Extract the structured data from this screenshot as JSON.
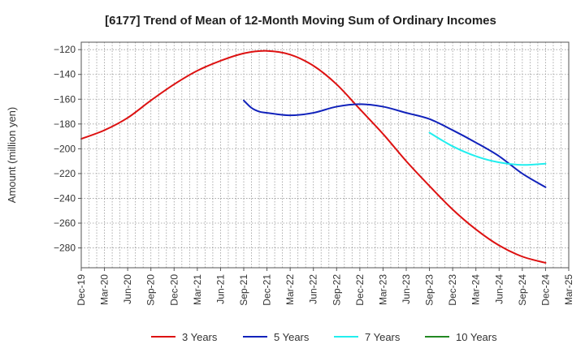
{
  "chart_data": {
    "type": "line",
    "title": "[6177]  Trend of Mean of 12-Month Moving Sum of Ordinary Incomes",
    "xlabel": "",
    "ylabel": "Amount (million yen)",
    "ylim": [
      -296,
      -114
    ],
    "yticks": [
      -120,
      -140,
      -160,
      -180,
      -200,
      -220,
      -240,
      -260,
      -280
    ],
    "x_range": [
      "Dec-19",
      "Mar-25"
    ],
    "x_tick_labels": [
      "Dec-19",
      "Mar-20",
      "Jun-20",
      "Sep-20",
      "Dec-20",
      "Mar-21",
      "Jun-21",
      "Sep-21",
      "Dec-21",
      "Mar-22",
      "Jun-22",
      "Sep-22",
      "Dec-22",
      "Mar-23",
      "Jun-23",
      "Sep-23",
      "Dec-23",
      "Mar-24",
      "Jun-24",
      "Sep-24",
      "Dec-24",
      "Mar-25"
    ],
    "grid": true,
    "legend_position": "bottom",
    "series": [
      {
        "name": "3 Years",
        "color": "#dd1111",
        "points": [
          [
            "Dec-19",
            -192
          ],
          [
            "Mar-20",
            -185
          ],
          [
            "Jun-20",
            -175
          ],
          [
            "Sep-20",
            -161
          ],
          [
            "Dec-20",
            -148
          ],
          [
            "Mar-21",
            -137
          ],
          [
            "Jun-21",
            -129
          ],
          [
            "Sep-21",
            -123
          ],
          [
            "Dec-21",
            -121
          ],
          [
            "Mar-22",
            -124
          ],
          [
            "Jun-22",
            -133
          ],
          [
            "Sep-22",
            -148
          ],
          [
            "Dec-22",
            -168
          ],
          [
            "Mar-23",
            -188
          ],
          [
            "Jun-23",
            -210
          ],
          [
            "Sep-23",
            -230
          ],
          [
            "Dec-23",
            -249
          ],
          [
            "Mar-24",
            -265
          ],
          [
            "Jun-24",
            -278
          ],
          [
            "Sep-24",
            -287
          ],
          [
            "Dec-24",
            -292
          ]
        ]
      },
      {
        "name": "5 Years",
        "color": "#1122bb",
        "points": [
          [
            "Sep-21",
            -161
          ],
          [
            "Oct-21",
            -167
          ],
          [
            "Nov-21",
            -170
          ],
          [
            "Dec-21",
            -171
          ],
          [
            "Mar-22",
            -173
          ],
          [
            "Jun-22",
            -171
          ],
          [
            "Sep-22",
            -166
          ],
          [
            "Dec-22",
            -164
          ],
          [
            "Mar-23",
            -166
          ],
          [
            "Jun-23",
            -171
          ],
          [
            "Sep-23",
            -176
          ],
          [
            "Dec-23",
            -185
          ],
          [
            "Mar-24",
            -195
          ],
          [
            "Jun-24",
            -206
          ],
          [
            "Sep-24",
            -220
          ],
          [
            "Dec-24",
            -231
          ]
        ]
      },
      {
        "name": "7 Years",
        "color": "#22eeee",
        "points": [
          [
            "Sep-23",
            -187
          ],
          [
            "Dec-23",
            -198
          ],
          [
            "Mar-24",
            -206
          ],
          [
            "Jun-24",
            -211
          ],
          [
            "Sep-24",
            -213
          ],
          [
            "Dec-24",
            -212
          ]
        ]
      },
      {
        "name": "10 Years",
        "color": "#228822",
        "points": []
      }
    ]
  }
}
